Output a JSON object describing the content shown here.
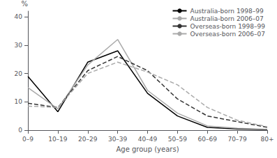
{
  "chart_data": {
    "type": "line",
    "categories": [
      "0–9",
      "10–19",
      "20–29",
      "30–39",
      "40–49",
      "50–59",
      "60–69",
      "70–79",
      "80+"
    ],
    "series": [
      {
        "name": "Australia-born 1998–99",
        "color": "#000000",
        "line_style": "solid",
        "values": [
          19,
          6.5,
          24,
          28,
          13,
          5,
          1,
          0.4,
          0.2
        ]
      },
      {
        "name": "Australia-born 2006–07",
        "color": "#aaaaaa",
        "line_style": "solid",
        "values": [
          15,
          7.5,
          23,
          32,
          14,
          6,
          1.5,
          0.7,
          0.3
        ]
      },
      {
        "name": "Overseas-born 1998–99",
        "color": "#333333",
        "line_style": "dashed",
        "values": [
          9.5,
          8,
          21,
          26,
          21,
          11,
          5,
          3,
          1
        ]
      },
      {
        "name": "Overseas-born 2006–07",
        "color": "#aaaaaa",
        "line_style": "dashed",
        "values": [
          8.5,
          8,
          20,
          24,
          20.5,
          16,
          8,
          3.5,
          1.2
        ]
      }
    ],
    "xlabel": "Age group (years)",
    "ylabel": "%",
    "ylim": [
      0,
      42
    ],
    "yticks": [
      0,
      10,
      20,
      30,
      40
    ],
    "grid": false,
    "legend": "upper right",
    "background_color": "#ffffff"
  }
}
